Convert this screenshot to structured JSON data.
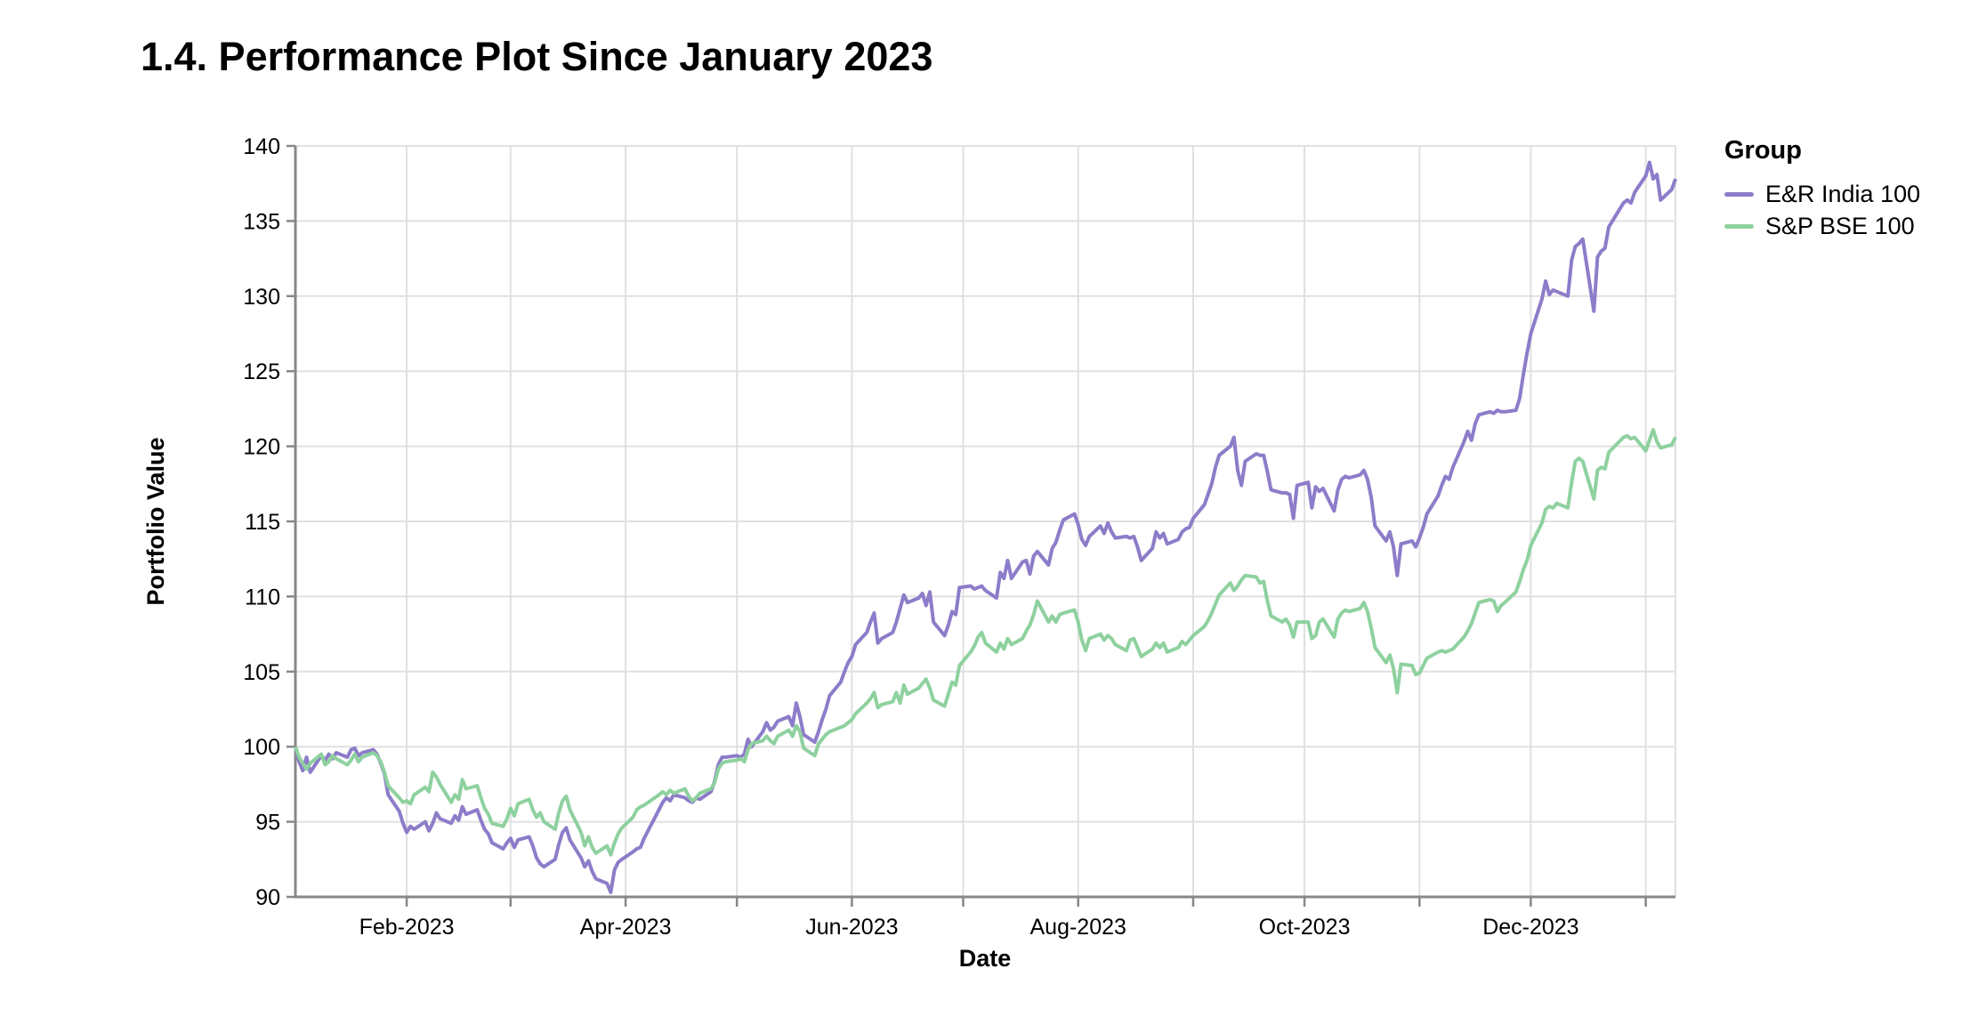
{
  "page": {
    "title": "1.4. Performance Plot Since January 2023"
  },
  "colors": {
    "series_purple": "#8d7cc9",
    "series_green": "#8ed19f",
    "gridline": "#e0e0e0",
    "axis": "#888888",
    "text": "#000000"
  },
  "legend": {
    "title": "Group"
  },
  "chart_data": {
    "type": "line",
    "title": "1.4. Performance Plot Since January 2023",
    "xlabel": "Date",
    "ylabel": "Portfolio Value",
    "ylim": [
      90,
      140
    ],
    "ytick_interval": 5,
    "y_tick_labels": [
      "90",
      "95",
      "100",
      "105",
      "110",
      "115",
      "120",
      "125",
      "130",
      "135",
      "140"
    ],
    "grid": true,
    "legend_title": "Group",
    "legend_position": "right",
    "x_ticks": [
      {
        "date": "2023-02-01",
        "label": "Feb-2023"
      },
      {
        "date": "2023-03-01",
        "label": ""
      },
      {
        "date": "2023-04-01",
        "label": "Apr-2023"
      },
      {
        "date": "2023-05-01",
        "label": ""
      },
      {
        "date": "2023-06-01",
        "label": "Jun-2023"
      },
      {
        "date": "2023-07-01",
        "label": ""
      },
      {
        "date": "2023-08-01",
        "label": "Aug-2023"
      },
      {
        "date": "2023-09-01",
        "label": ""
      },
      {
        "date": "2023-10-01",
        "label": "Oct-2023"
      },
      {
        "date": "2023-11-01",
        "label": ""
      },
      {
        "date": "2023-12-01",
        "label": "Dec-2023"
      },
      {
        "date": "2024-01-01",
        "label": ""
      }
    ],
    "dates": [
      "2023-01-02",
      "2023-01-03",
      "2023-01-04",
      "2023-01-05",
      "2023-01-06",
      "2023-01-09",
      "2023-01-10",
      "2023-01-11",
      "2023-01-12",
      "2023-01-13",
      "2023-01-16",
      "2023-01-17",
      "2023-01-18",
      "2023-01-19",
      "2023-01-20",
      "2023-01-23",
      "2023-01-24",
      "2023-01-25",
      "2023-01-26",
      "2023-01-27",
      "2023-01-30",
      "2023-01-31",
      "2023-02-01",
      "2023-02-02",
      "2023-02-03",
      "2023-02-06",
      "2023-02-07",
      "2023-02-08",
      "2023-02-09",
      "2023-02-10",
      "2023-02-13",
      "2023-02-14",
      "2023-02-15",
      "2023-02-16",
      "2023-02-17",
      "2023-02-20",
      "2023-02-21",
      "2023-02-22",
      "2023-02-23",
      "2023-02-24",
      "2023-02-27",
      "2023-02-28",
      "2023-03-01",
      "2023-03-02",
      "2023-03-03",
      "2023-03-06",
      "2023-03-07",
      "2023-03-08",
      "2023-03-09",
      "2023-03-10",
      "2023-03-13",
      "2023-03-14",
      "2023-03-15",
      "2023-03-16",
      "2023-03-17",
      "2023-03-20",
      "2023-03-21",
      "2023-03-22",
      "2023-03-23",
      "2023-03-24",
      "2023-03-27",
      "2023-03-28",
      "2023-03-29",
      "2023-03-30",
      "2023-03-31",
      "2023-04-03",
      "2023-04-04",
      "2023-04-05",
      "2023-04-06",
      "2023-04-10",
      "2023-04-11",
      "2023-04-12",
      "2023-04-13",
      "2023-04-14",
      "2023-04-17",
      "2023-04-18",
      "2023-04-19",
      "2023-04-20",
      "2023-04-21",
      "2023-04-24",
      "2023-04-25",
      "2023-04-26",
      "2023-04-27",
      "2023-04-28",
      "2023-05-01",
      "2023-05-02",
      "2023-05-03",
      "2023-05-04",
      "2023-05-05",
      "2023-05-08",
      "2023-05-09",
      "2023-05-10",
      "2023-05-11",
      "2023-05-12",
      "2023-05-15",
      "2023-05-16",
      "2023-05-17",
      "2023-05-18",
      "2023-05-19",
      "2023-05-22",
      "2023-05-23",
      "2023-05-24",
      "2023-05-25",
      "2023-05-26",
      "2023-05-29",
      "2023-05-30",
      "2023-05-31",
      "2023-06-01",
      "2023-06-02",
      "2023-06-05",
      "2023-06-06",
      "2023-06-07",
      "2023-06-08",
      "2023-06-09",
      "2023-06-12",
      "2023-06-13",
      "2023-06-14",
      "2023-06-15",
      "2023-06-16",
      "2023-06-19",
      "2023-06-20",
      "2023-06-21",
      "2023-06-22",
      "2023-06-23",
      "2023-06-26",
      "2023-06-27",
      "2023-06-28",
      "2023-06-29",
      "2023-06-30",
      "2023-07-03",
      "2023-07-04",
      "2023-07-05",
      "2023-07-06",
      "2023-07-07",
      "2023-07-10",
      "2023-07-11",
      "2023-07-12",
      "2023-07-13",
      "2023-07-14",
      "2023-07-17",
      "2023-07-18",
      "2023-07-19",
      "2023-07-20",
      "2023-07-21",
      "2023-07-24",
      "2023-07-25",
      "2023-07-26",
      "2023-07-27",
      "2023-07-28",
      "2023-07-31",
      "2023-08-01",
      "2023-08-02",
      "2023-08-03",
      "2023-08-04",
      "2023-08-07",
      "2023-08-08",
      "2023-08-09",
      "2023-08-10",
      "2023-08-11",
      "2023-08-14",
      "2023-08-15",
      "2023-08-16",
      "2023-08-17",
      "2023-08-18",
      "2023-08-21",
      "2023-08-22",
      "2023-08-23",
      "2023-08-24",
      "2023-08-25",
      "2023-08-28",
      "2023-08-29",
      "2023-08-30",
      "2023-08-31",
      "2023-09-01",
      "2023-09-04",
      "2023-09-05",
      "2023-09-06",
      "2023-09-07",
      "2023-09-08",
      "2023-09-11",
      "2023-09-12",
      "2023-09-13",
      "2023-09-14",
      "2023-09-15",
      "2023-09-18",
      "2023-09-19",
      "2023-09-20",
      "2023-09-21",
      "2023-09-22",
      "2023-09-25",
      "2023-09-26",
      "2023-09-27",
      "2023-09-28",
      "2023-09-29",
      "2023-10-02",
      "2023-10-03",
      "2023-10-04",
      "2023-10-05",
      "2023-10-06",
      "2023-10-09",
      "2023-10-10",
      "2023-10-11",
      "2023-10-12",
      "2023-10-13",
      "2023-10-16",
      "2023-10-17",
      "2023-10-18",
      "2023-10-19",
      "2023-10-20",
      "2023-10-23",
      "2023-10-24",
      "2023-10-25",
      "2023-10-26",
      "2023-10-27",
      "2023-10-30",
      "2023-10-31",
      "2023-11-01",
      "2023-11-02",
      "2023-11-03",
      "2023-11-06",
      "2023-11-07",
      "2023-11-08",
      "2023-11-09",
      "2023-11-10",
      "2023-11-13",
      "2023-11-14",
      "2023-11-15",
      "2023-11-16",
      "2023-11-17",
      "2023-11-20",
      "2023-11-21",
      "2023-11-22",
      "2023-11-23",
      "2023-11-24",
      "2023-11-27",
      "2023-11-28",
      "2023-11-29",
      "2023-11-30",
      "2023-12-01",
      "2023-12-04",
      "2023-12-05",
      "2023-12-06",
      "2023-12-07",
      "2023-12-08",
      "2023-12-11",
      "2023-12-12",
      "2023-12-13",
      "2023-12-14",
      "2023-12-15",
      "2023-12-18",
      "2023-12-19",
      "2023-12-20",
      "2023-12-21",
      "2023-12-22",
      "2023-12-26",
      "2023-12-27",
      "2023-12-28",
      "2023-12-29",
      "2024-01-01",
      "2024-01-02",
      "2024-01-03",
      "2024-01-04",
      "2024-01-05",
      "2024-01-08",
      "2024-01-09"
    ],
    "series": [
      {
        "name": "E&R India 100",
        "color": "#8d7cc9",
        "values": [
          100.0,
          99.0,
          98.4,
          99.3,
          98.3,
          99.4,
          99.1,
          99.5,
          99.2,
          99.6,
          99.3,
          99.8,
          99.9,
          99.4,
          99.6,
          99.8,
          99.5,
          98.9,
          98.2,
          96.8,
          95.7,
          94.9,
          94.3,
          94.7,
          94.5,
          95.0,
          94.4,
          94.9,
          95.6,
          95.2,
          94.9,
          95.4,
          95.1,
          96.0,
          95.5,
          95.8,
          95.1,
          94.5,
          94.2,
          93.6,
          93.2,
          93.6,
          93.9,
          93.3,
          93.8,
          94.0,
          93.4,
          92.6,
          92.2,
          92.0,
          92.5,
          93.5,
          94.3,
          94.6,
          93.8,
          92.6,
          92.0,
          92.4,
          91.7,
          91.2,
          90.9,
          90.3,
          91.8,
          92.3,
          92.5,
          93.0,
          93.2,
          93.3,
          93.9,
          95.8,
          96.3,
          96.6,
          96.4,
          96.8,
          96.6,
          96.4,
          96.3,
          96.6,
          96.5,
          97.0,
          97.7,
          98.8,
          99.3,
          99.3,
          99.4,
          99.3,
          99.5,
          100.5,
          100.0,
          101.0,
          101.6,
          101.1,
          101.3,
          101.7,
          102.0,
          101.4,
          102.9,
          102.0,
          100.8,
          100.3,
          101.0,
          101.8,
          102.5,
          103.4,
          104.3,
          105.0,
          105.6,
          106.0,
          106.8,
          107.6,
          108.3,
          108.9,
          106.9,
          107.2,
          107.6,
          108.3,
          109.2,
          110.1,
          109.6,
          109.9,
          110.2,
          109.4,
          110.3,
          108.3,
          107.4,
          108.1,
          109.0,
          108.8,
          110.6,
          110.7,
          110.5,
          110.6,
          110.7,
          110.4,
          109.9,
          111.6,
          111.2,
          112.4,
          111.2,
          112.3,
          112.4,
          111.5,
          112.7,
          113.0,
          112.1,
          113.2,
          113.6,
          114.4,
          115.1,
          115.5,
          114.8,
          113.8,
          113.4,
          114.0,
          114.7,
          114.2,
          114.9,
          114.3,
          113.9,
          114.0,
          113.9,
          114.0,
          113.3,
          112.4,
          113.2,
          114.3,
          113.9,
          114.2,
          113.5,
          113.8,
          114.3,
          114.5,
          114.6,
          115.2,
          116.1,
          116.8,
          117.5,
          118.6,
          119.4,
          120.0,
          120.6,
          118.4,
          117.4,
          119.0,
          119.5,
          119.4,
          119.4,
          118.3,
          117.1,
          116.9,
          116.9,
          116.8,
          115.2,
          117.4,
          117.6,
          115.9,
          117.3,
          117.0,
          117.2,
          115.7,
          117.1,
          117.8,
          118.0,
          117.9,
          118.1,
          118.4,
          117.8,
          116.6,
          114.7,
          113.7,
          114.3,
          113.3,
          111.4,
          113.5,
          113.7,
          113.3,
          113.9,
          114.6,
          115.5,
          116.7,
          117.4,
          118.0,
          117.8,
          118.6,
          120.3,
          121.0,
          120.4,
          121.5,
          122.1,
          122.3,
          122.2,
          122.4,
          122.3,
          122.3,
          122.4,
          123.2,
          124.8,
          126.2,
          127.5,
          129.8,
          131.0,
          130.1,
          130.4,
          130.3,
          130.0,
          132.4,
          133.3,
          133.5,
          133.8,
          129.0,
          132.6,
          133.0,
          133.2,
          134.6,
          136.2,
          136.4,
          136.2,
          136.9,
          138.0,
          138.9,
          137.8,
          138.1,
          136.4,
          137.1,
          137.8
        ]
      },
      {
        "name": "S&P BSE 100",
        "color": "#8ed19f",
        "values": [
          100.0,
          99.3,
          98.9,
          98.5,
          98.9,
          99.5,
          98.8,
          99.0,
          99.4,
          99.2,
          98.8,
          99.1,
          99.5,
          99.0,
          99.3,
          99.6,
          99.4,
          99.0,
          98.3,
          97.4,
          96.6,
          96.3,
          96.4,
          96.2,
          96.8,
          97.3,
          97.0,
          98.3,
          98.0,
          97.5,
          96.3,
          96.8,
          96.5,
          97.8,
          97.2,
          97.4,
          96.6,
          95.9,
          95.5,
          94.9,
          94.7,
          95.2,
          95.9,
          95.4,
          96.2,
          96.5,
          95.8,
          95.3,
          95.6,
          95.0,
          94.5,
          95.6,
          96.4,
          96.7,
          95.8,
          94.3,
          93.4,
          94.0,
          93.3,
          92.9,
          93.4,
          92.8,
          93.6,
          94.2,
          94.6,
          95.3,
          95.8,
          96.0,
          96.1,
          96.8,
          97.0,
          96.8,
          97.1,
          96.9,
          97.2,
          96.7,
          96.4,
          96.6,
          96.9,
          97.2,
          97.6,
          98.5,
          98.9,
          99.0,
          99.1,
          99.2,
          99.0,
          99.8,
          100.2,
          100.4,
          100.7,
          100.4,
          100.2,
          100.7,
          101.1,
          100.7,
          101.4,
          101.0,
          99.9,
          99.4,
          100.2,
          100.5,
          100.8,
          101.0,
          101.3,
          101.4,
          101.6,
          101.8,
          102.2,
          102.9,
          103.2,
          103.6,
          102.6,
          102.8,
          103.0,
          103.6,
          102.9,
          104.1,
          103.5,
          103.9,
          104.2,
          104.5,
          103.9,
          103.1,
          102.7,
          103.5,
          104.3,
          104.1,
          105.4,
          106.3,
          106.7,
          107.3,
          107.6,
          106.9,
          106.3,
          106.9,
          106.5,
          107.2,
          106.8,
          107.2,
          107.7,
          108.1,
          108.8,
          109.7,
          108.3,
          108.7,
          108.3,
          108.8,
          108.9,
          109.1,
          108.3,
          107.1,
          106.4,
          107.2,
          107.5,
          107.1,
          107.4,
          107.2,
          106.8,
          106.4,
          107.1,
          107.2,
          106.6,
          106.0,
          106.5,
          106.9,
          106.6,
          106.9,
          106.3,
          106.6,
          107.0,
          106.8,
          107.1,
          107.4,
          108.0,
          108.4,
          108.9,
          109.5,
          110.1,
          110.9,
          110.4,
          110.7,
          111.1,
          111.4,
          111.3,
          110.9,
          111.0,
          109.7,
          108.7,
          108.3,
          108.5,
          108.1,
          107.3,
          108.3,
          108.3,
          107.2,
          107.4,
          108.3,
          108.5,
          107.3,
          108.5,
          108.9,
          109.1,
          109.0,
          109.2,
          109.6,
          109.0,
          107.9,
          106.6,
          105.6,
          106.1,
          105.2,
          103.6,
          105.5,
          105.4,
          104.8,
          104.9,
          105.4,
          105.9,
          106.3,
          106.4,
          106.3,
          106.4,
          106.5,
          107.3,
          107.7,
          108.2,
          108.9,
          109.6,
          109.8,
          109.7,
          109.0,
          109.4,
          109.6,
          110.3,
          111.0,
          111.8,
          112.4,
          113.4,
          114.9,
          115.8,
          116.0,
          115.9,
          116.2,
          115.9,
          117.6,
          119.0,
          119.2,
          119.0,
          116.5,
          118.4,
          118.6,
          118.5,
          119.6,
          120.6,
          120.7,
          120.5,
          120.6,
          119.7,
          120.4,
          121.1,
          120.3,
          119.9,
          120.1,
          120.6
        ]
      }
    ]
  }
}
